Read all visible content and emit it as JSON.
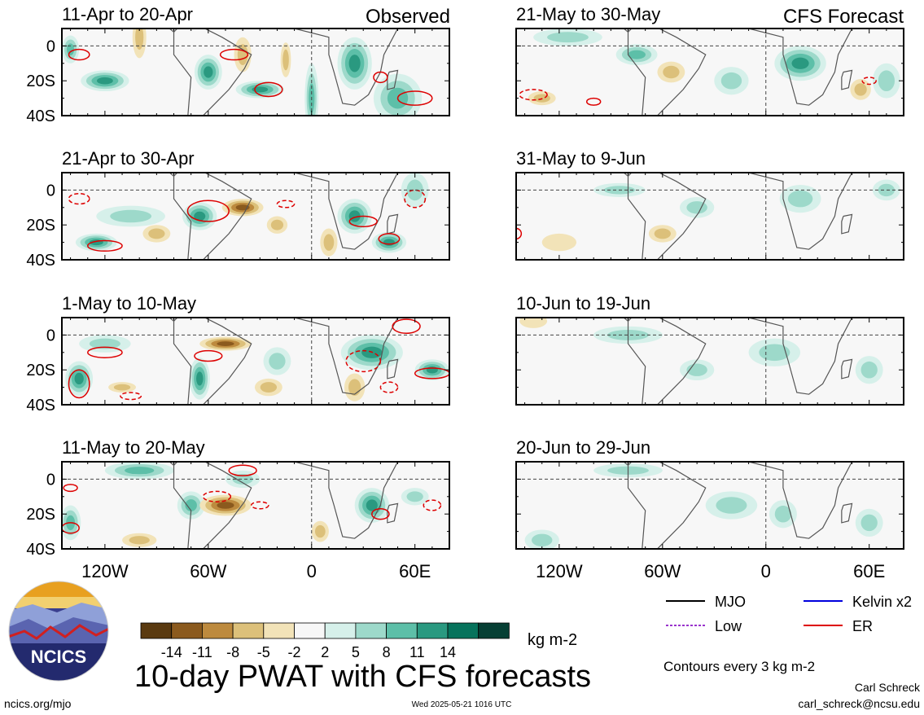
{
  "chart_data": {
    "type": "heatmap",
    "title": "10-day PWAT with CFS forecasts",
    "variable": "PWAT anomaly",
    "units": "kg m-2",
    "contour_note": "Contours every 3 kg m-2",
    "column_headers": {
      "observed": "Observed",
      "forecast": "CFS Forecast"
    },
    "x_ticks": [
      "120W",
      "60W",
      "0",
      "60E"
    ],
    "x_tick_values": [
      -120,
      -60,
      0,
      60
    ],
    "xlim": [
      -145,
      80
    ],
    "y_ticks": [
      "0",
      "20S",
      "40S"
    ],
    "y_tick_values": [
      0,
      -20,
      -40
    ],
    "ylim": [
      -40,
      10
    ],
    "panels": [
      {
        "id": "obs-1",
        "title": "11-Apr to 20-Apr",
        "group": "observed",
        "row": 0,
        "wet": [
          [
            -120,
            -20,
            14,
            6,
            10
          ],
          [
            -60,
            -15,
            8,
            10,
            10
          ],
          [
            -30,
            -25,
            14,
            5,
            12
          ],
          [
            25,
            -10,
            10,
            15,
            12
          ],
          [
            50,
            -30,
            14,
            14,
            8
          ],
          [
            -140,
            -2,
            5,
            8,
            8
          ],
          [
            0,
            -30,
            4,
            20,
            8
          ]
        ],
        "dry": [
          [
            -40,
            -5,
            5,
            10,
            5
          ],
          [
            -100,
            5,
            4,
            12,
            4
          ],
          [
            -15,
            -8,
            3,
            10,
            5
          ]
        ],
        "contours": [
          [
            -25,
            -25,
            8,
            4,
            "solid"
          ],
          [
            -45,
            -5,
            8,
            3,
            "solid"
          ],
          [
            40,
            -18,
            4,
            3,
            "solid"
          ],
          [
            60,
            -30,
            10,
            4,
            "solid"
          ],
          [
            -135,
            -5,
            6,
            3,
            "solid"
          ]
        ]
      },
      {
        "id": "obs-2",
        "title": "21-Apr to 30-Apr",
        "group": "observed",
        "row": 1,
        "wet": [
          [
            -65,
            -15,
            10,
            8,
            10
          ],
          [
            25,
            -15,
            10,
            10,
            10
          ],
          [
            45,
            -30,
            10,
            6,
            10
          ],
          [
            -125,
            -30,
            12,
            5,
            10
          ],
          [
            -105,
            -15,
            20,
            6,
            6
          ],
          [
            60,
            0,
            8,
            10,
            6
          ]
        ],
        "dry": [
          [
            -40,
            -10,
            12,
            5,
            10
          ],
          [
            -90,
            -25,
            8,
            5,
            5
          ],
          [
            -20,
            -20,
            6,
            5,
            4
          ],
          [
            10,
            -30,
            5,
            8,
            4
          ]
        ],
        "contours": [
          [
            -60,
            -12,
            12,
            6,
            "solid"
          ],
          [
            30,
            -18,
            8,
            3,
            "solid"
          ],
          [
            45,
            -28,
            6,
            3,
            "solid"
          ],
          [
            -120,
            -32,
            10,
            3,
            "solid"
          ],
          [
            -15,
            -8,
            5,
            2,
            "dashed"
          ],
          [
            -135,
            -5,
            6,
            3,
            "dashed"
          ],
          [
            60,
            -5,
            6,
            5,
            "dashed"
          ]
        ]
      },
      {
        "id": "obs-3",
        "title": "1-May to 10-May",
        "group": "observed",
        "row": 2,
        "wet": [
          [
            -65,
            -25,
            6,
            12,
            12
          ],
          [
            35,
            -10,
            18,
            10,
            12
          ],
          [
            70,
            -20,
            10,
            6,
            10
          ],
          [
            -135,
            -25,
            8,
            10,
            10
          ],
          [
            -120,
            -5,
            15,
            5,
            6
          ],
          [
            -20,
            -15,
            8,
            8,
            6
          ]
        ],
        "dry": [
          [
            -50,
            -5,
            15,
            4,
            12
          ],
          [
            25,
            -30,
            6,
            8,
            5
          ],
          [
            -110,
            -30,
            8,
            3,
            5
          ],
          [
            -25,
            -30,
            8,
            5,
            4
          ]
        ],
        "contours": [
          [
            -120,
            -10,
            10,
            3,
            "solid"
          ],
          [
            -135,
            -28,
            6,
            8,
            "solid"
          ],
          [
            30,
            -15,
            10,
            6,
            "dashed"
          ],
          [
            45,
            -30,
            5,
            3,
            "dashed"
          ],
          [
            70,
            -22,
            10,
            3,
            "solid"
          ],
          [
            -60,
            -12,
            8,
            3,
            "solid"
          ],
          [
            -105,
            -35,
            6,
            2,
            "dashed"
          ],
          [
            55,
            5,
            8,
            4,
            "solid"
          ]
        ]
      },
      {
        "id": "obs-4",
        "title": "11-May to 20-May",
        "group": "observed",
        "row": 3,
        "wet": [
          [
            -100,
            5,
            20,
            5,
            8
          ],
          [
            -70,
            -15,
            8,
            8,
            8
          ],
          [
            35,
            -15,
            10,
            10,
            10
          ],
          [
            -140,
            -25,
            6,
            10,
            8
          ],
          [
            60,
            -10,
            8,
            5,
            6
          ],
          [
            -40,
            0,
            10,
            5,
            6
          ]
        ],
        "dry": [
          [
            -50,
            -15,
            15,
            6,
            10
          ],
          [
            -100,
            -35,
            10,
            4,
            5
          ],
          [
            5,
            -30,
            5,
            6,
            4
          ]
        ],
        "contours": [
          [
            -40,
            5,
            8,
            3,
            "solid"
          ],
          [
            -55,
            -10,
            8,
            3,
            "dashed"
          ],
          [
            -30,
            -15,
            5,
            2,
            "dashed"
          ],
          [
            40,
            -20,
            5,
            3,
            "solid"
          ],
          [
            70,
            -15,
            5,
            3,
            "dashed"
          ],
          [
            -140,
            -28,
            5,
            3,
            "solid"
          ],
          [
            -140,
            -5,
            4,
            2,
            "solid"
          ]
        ]
      },
      {
        "id": "fcst-1",
        "title": "21-May to 30-May",
        "group": "forecast",
        "row": 0,
        "wet": [
          [
            -75,
            -5,
            12,
            6,
            8
          ],
          [
            20,
            -10,
            15,
            10,
            10
          ],
          [
            -115,
            5,
            20,
            5,
            6
          ],
          [
            -20,
            -20,
            10,
            8,
            6
          ],
          [
            70,
            -20,
            8,
            10,
            6
          ]
        ],
        "dry": [
          [
            -55,
            -15,
            8,
            6,
            6
          ],
          [
            55,
            -25,
            6,
            6,
            5
          ],
          [
            -130,
            -30,
            8,
            4,
            4
          ]
        ],
        "contours": [
          [
            -135,
            -28,
            8,
            3,
            "dashed"
          ],
          [
            -100,
            -32,
            4,
            2,
            "solid"
          ],
          [
            60,
            -20,
            4,
            2,
            "dashed"
          ]
        ]
      },
      {
        "id": "fcst-2",
        "title": "31-May to 9-Jun",
        "group": "forecast",
        "row": 1,
        "wet": [
          [
            -85,
            0,
            15,
            4,
            6
          ],
          [
            20,
            -5,
            12,
            8,
            6
          ],
          [
            -40,
            -10,
            10,
            6,
            5
          ],
          [
            70,
            0,
            8,
            6,
            5
          ]
        ],
        "dry": [
          [
            -60,
            -25,
            8,
            5,
            4
          ],
          [
            -120,
            -30,
            10,
            5,
            3
          ]
        ],
        "contours": [
          [
            -145,
            -25,
            3,
            3,
            "solid"
          ]
        ]
      },
      {
        "id": "fcst-3",
        "title": "10-Jun to 19-Jun",
        "group": "forecast",
        "row": 2,
        "wet": [
          [
            5,
            -10,
            15,
            8,
            6
          ],
          [
            -80,
            0,
            20,
            5,
            5
          ],
          [
            -40,
            -20,
            10,
            6,
            4
          ],
          [
            60,
            -20,
            8,
            8,
            4
          ]
        ],
        "dry": [
          [
            -135,
            8,
            8,
            4,
            3
          ]
        ],
        "contours": []
      },
      {
        "id": "fcst-4",
        "title": "20-Jun to 29-Jun",
        "group": "forecast",
        "row": 3,
        "wet": [
          [
            -20,
            -15,
            15,
            8,
            5
          ],
          [
            -80,
            5,
            20,
            4,
            5
          ],
          [
            10,
            -20,
            8,
            8,
            5
          ],
          [
            -130,
            -35,
            10,
            6,
            4
          ],
          [
            60,
            -25,
            8,
            8,
            4
          ]
        ],
        "dry": [],
        "contours": []
      }
    ],
    "colorbar": {
      "colors": [
        "#5a3a10",
        "#8b5a1e",
        "#bd8a3e",
        "#dcc07a",
        "#f2e3b8",
        "#f7f7f7",
        "#d6f0ea",
        "#9dd9ca",
        "#5dbfa8",
        "#2a9980",
        "#06735c",
        "#063f34"
      ],
      "labels": [
        "-14",
        "-11",
        "-8",
        "-5",
        "-2",
        "2",
        "5",
        "8",
        "11",
        "14"
      ],
      "units_label": "kg m-2"
    },
    "legend": [
      {
        "label": "MJO",
        "color": "#000000",
        "style": "solid"
      },
      {
        "label": "Kelvin x2",
        "color": "#0000dd",
        "style": "solid"
      },
      {
        "label": "Low",
        "color": "#9933cc",
        "style": "dashed"
      },
      {
        "label": "ER",
        "color": "#dd0000",
        "style": "solid"
      }
    ]
  },
  "footer": {
    "left": "ncics.org/mjo",
    "center": "Wed 2025-05-21 1016 UTC",
    "author": "Carl Schreck",
    "email": "carl_schreck@ncsu.edu"
  },
  "logo": {
    "text": "NCICS"
  }
}
